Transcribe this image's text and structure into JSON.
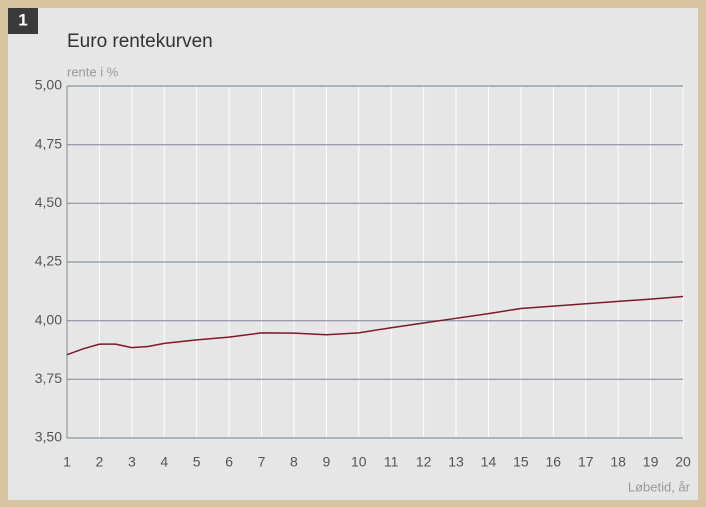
{
  "badge": "1",
  "chart_data": {
    "type": "line",
    "title": "Euro rentekurven",
    "y_label": "rente i %",
    "x_label": "Løbetid, år",
    "x": [
      1,
      1.5,
      2,
      2.5,
      3,
      3.5,
      4,
      5,
      6,
      7,
      8,
      9,
      10,
      11,
      12,
      13,
      14,
      15,
      16,
      17,
      18,
      19,
      20
    ],
    "series": [
      {
        "name": "Euro",
        "color": "#7a1a2a",
        "values": [
          3.855,
          3.88,
          3.9,
          3.9,
          3.885,
          3.89,
          3.903,
          3.918,
          3.93,
          3.948,
          3.947,
          3.94,
          3.948,
          3.97,
          3.99,
          4.01,
          4.03,
          4.052,
          4.062,
          4.072,
          4.082,
          4.092,
          4.103
        ]
      }
    ],
    "xlim": [
      1,
      20
    ],
    "xticks": [
      1,
      2,
      3,
      4,
      5,
      6,
      7,
      8,
      9,
      10,
      11,
      12,
      13,
      14,
      15,
      16,
      17,
      18,
      19,
      20
    ],
    "ylim": [
      3.5,
      5.0
    ],
    "yticks": [
      {
        "value": 3.5,
        "label": "3,50"
      },
      {
        "value": 3.75,
        "label": "3,75"
      },
      {
        "value": 4.0,
        "label": "4,00"
      },
      {
        "value": 4.25,
        "label": "4,25"
      },
      {
        "value": 4.5,
        "label": "4,50"
      },
      {
        "value": 4.75,
        "label": "4,75"
      },
      {
        "value": 5.0,
        "label": "5,00"
      }
    ],
    "grid": true
  }
}
